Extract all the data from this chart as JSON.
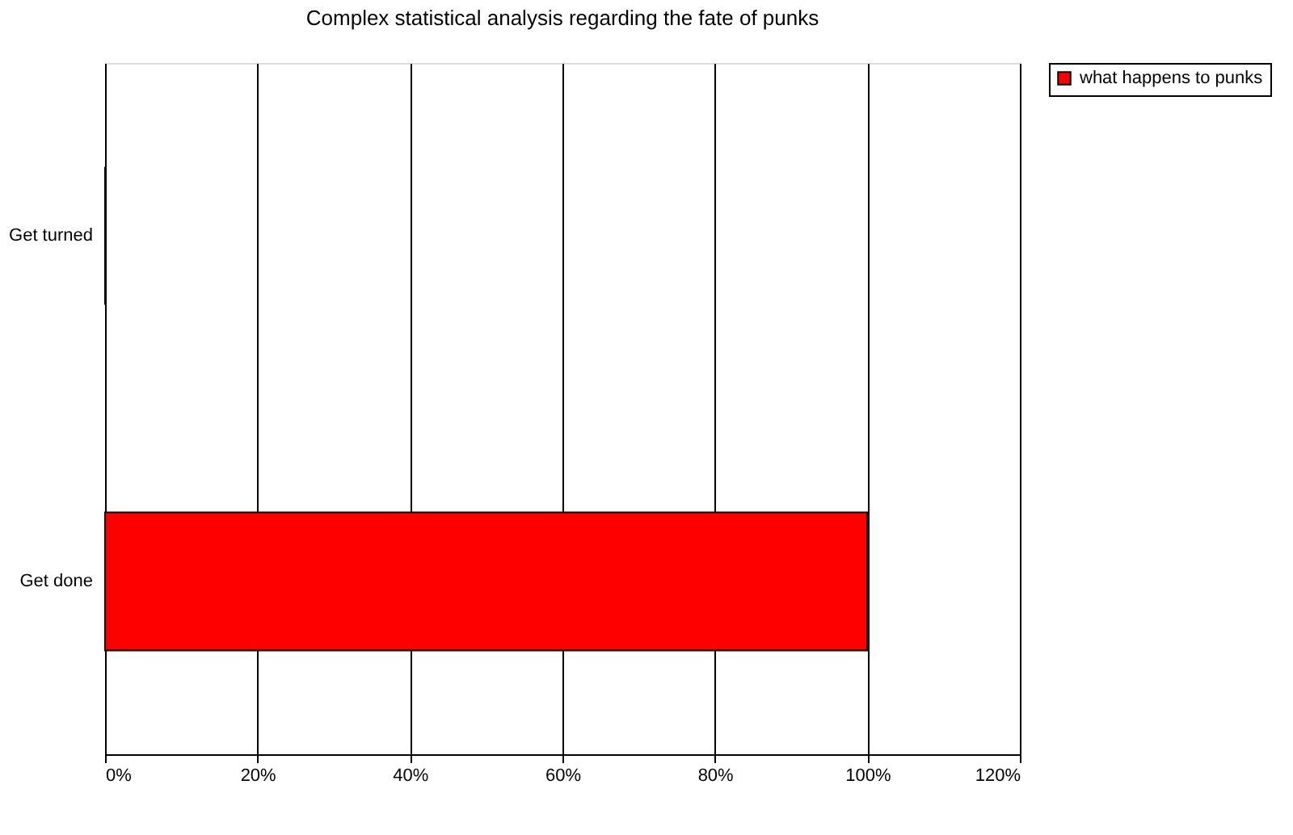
{
  "chart_data": {
    "type": "bar",
    "orientation": "horizontal",
    "title": "Complex statistical analysis regarding the fate of punks",
    "categories": [
      "Get turned",
      "Get done"
    ],
    "series": [
      {
        "name": "what happens to punks",
        "color": "#ff0000",
        "values": [
          0,
          100
        ]
      }
    ],
    "xlim": [
      0,
      120
    ],
    "xticks": [
      {
        "value": 0,
        "label": "0%"
      },
      {
        "value": 20,
        "label": "20%"
      },
      {
        "value": 40,
        "label": "40%"
      },
      {
        "value": 60,
        "label": "60%"
      },
      {
        "value": 80,
        "label": "80%"
      },
      {
        "value": 100,
        "label": "100%"
      },
      {
        "value": 120,
        "label": "120%"
      }
    ],
    "grid": "x",
    "legend": "right"
  }
}
